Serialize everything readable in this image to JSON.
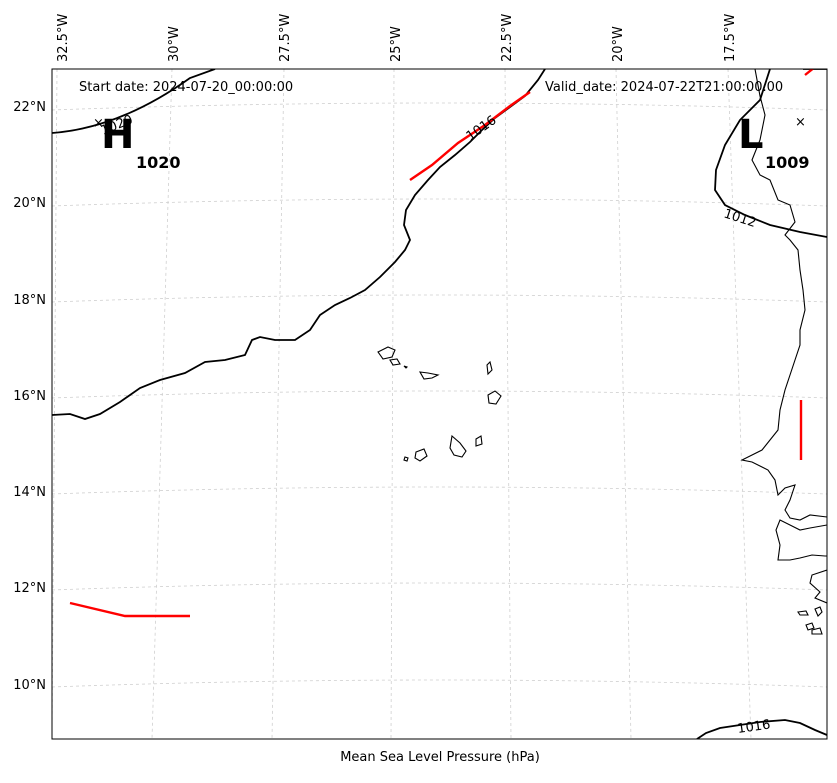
{
  "map": {
    "start_date": "Start date: 2024-07-20_00:00:00",
    "valid_date": "Valid_date: 2024-07-22T21:00:00.00",
    "caption": "Mean Sea Level Pressure (hPa)",
    "lon_ticks": [
      "32.5°W",
      "30°W",
      "27.5°W",
      "25°W",
      "22.5°W",
      "20°W",
      "17.5°W"
    ],
    "lat_ticks": [
      "22°N",
      "20°N",
      "18°N",
      "16°N",
      "14°N",
      "12°N",
      "10°N"
    ],
    "high": {
      "letter": "H",
      "value": "1020"
    },
    "low": {
      "letter": "L",
      "value": "1009"
    },
    "contour_labels": {
      "c1020": "1020",
      "c1016_top": "1016",
      "c1012": "1012",
      "c1016_bottom": "1016"
    },
    "colors": {
      "front": "#ff0000",
      "isobar": "#000000",
      "grid": "#cfcfcf"
    }
  }
}
